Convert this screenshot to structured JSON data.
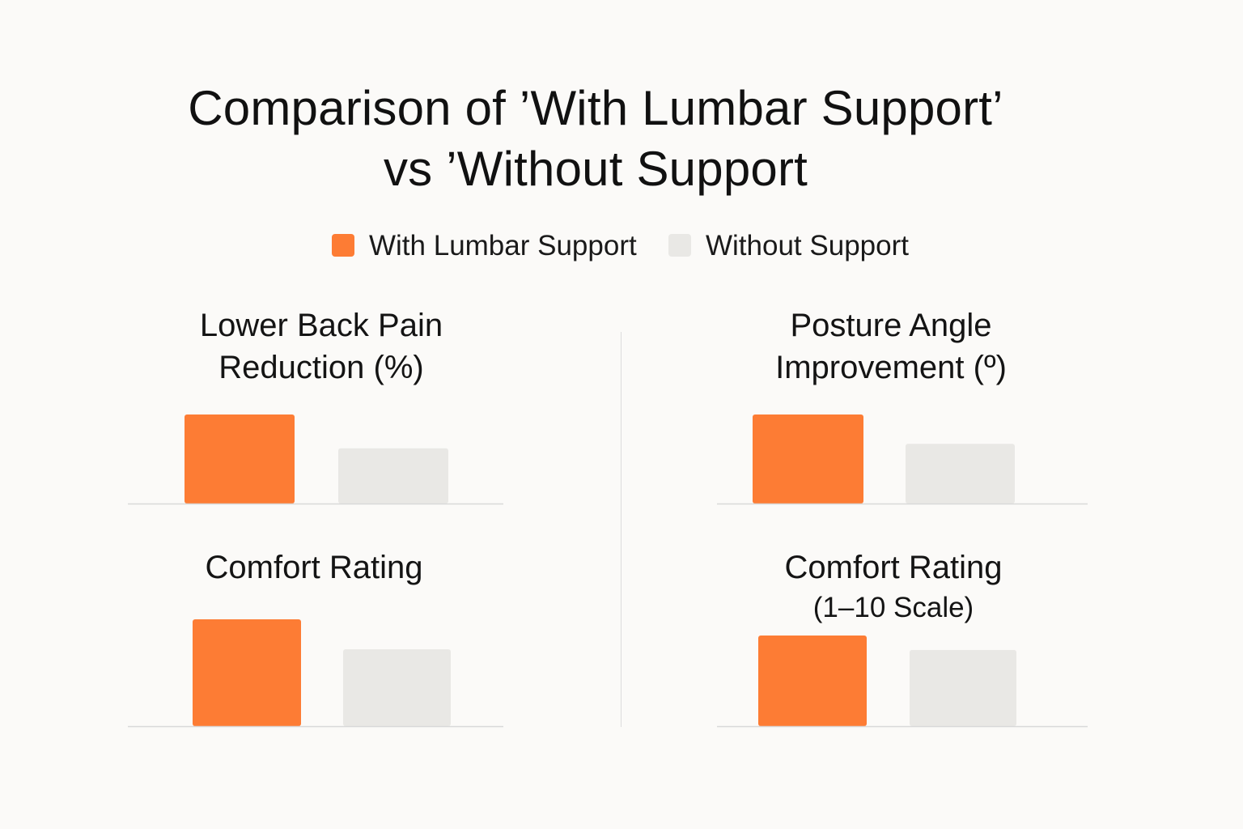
{
  "chart_data": {
    "type": "bar",
    "title": "Comparison of ’With Lumbar Support’ vs ’Without Support",
    "title_lines": [
      "Comparison of ’With Lumbar Support’",
      "vs ’Without Support"
    ],
    "legend": {
      "placement": "top",
      "entries": [
        {
          "label": "With Lumbar Support",
          "color": "#fd7c34"
        },
        {
          "label": "Without Support",
          "color": "#e9e8e5"
        }
      ]
    },
    "grid": false,
    "axes_labels_shown": false,
    "series_names": [
      "With Lumbar Support",
      "Without Support"
    ],
    "panels": [
      {
        "id": "lower-back-pain",
        "title_lines": [
          "Lower Back Pain",
          "Reduction (%)"
        ],
        "subtitle": "",
        "values": [
          100,
          62
        ],
        "ylim": [
          0,
          100
        ]
      },
      {
        "id": "posture-angle",
        "title_lines": [
          "Posture Angle",
          "Improvement (º)"
        ],
        "subtitle": "",
        "values": [
          100,
          67
        ],
        "ylim": [
          0,
          100
        ]
      },
      {
        "id": "comfort-rating-left",
        "title_lines": [
          "Comfort Rating"
        ],
        "subtitle": "",
        "values": [
          100,
          72
        ],
        "ylim": [
          0,
          100
        ]
      },
      {
        "id": "comfort-rating-right",
        "title_lines": [
          "Comfort Rating"
        ],
        "subtitle": "(1–10 Scale)",
        "values": [
          100,
          84
        ],
        "ylim": [
          0,
          100
        ]
      }
    ]
  },
  "colors": {
    "with_support": "#fd7c34",
    "without_support": "#e9e8e5",
    "axis_line": "#d9d9d9",
    "background": "#fbfaf8"
  }
}
